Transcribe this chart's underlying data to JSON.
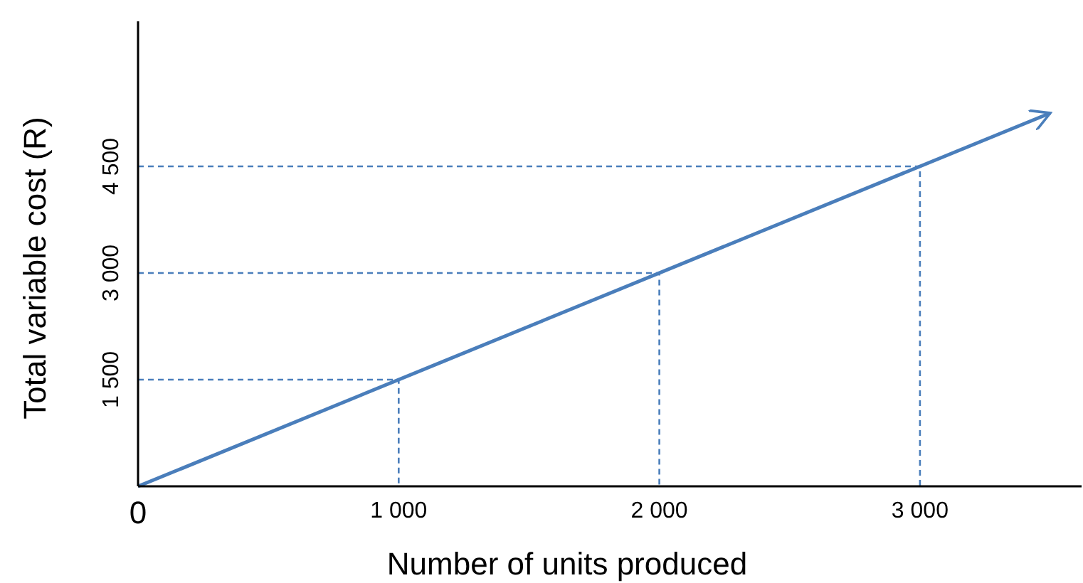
{
  "chart_data": {
    "type": "line",
    "xlabel": "Number of units produced",
    "ylabel": "Total variable cost (R)",
    "x": [
      0,
      3500
    ],
    "series": [
      {
        "color": "#4a7ebb",
        "values": [
          0,
          5250
        ]
      },
      {
        "type": "line",
        "line_style": "dashed",
        "color": "#4a7ebb",
        "x": [
          0,
          1000,
          1000
        ],
        "values": [
          1500,
          1500,
          0
        ]
      },
      {
        "type": "line",
        "line_style": "dashed",
        "color": "#4a7ebb",
        "x": [
          0,
          2000,
          2000
        ],
        "values": [
          3000,
          3000,
          0
        ]
      },
      {
        "type": "line",
        "line_style": "dashed",
        "color": "#4a7ebb",
        "x": [
          0,
          3000,
          3000
        ],
        "values": [
          4500,
          4500,
          0
        ]
      }
    ],
    "xlim": [
      0,
      3620
    ],
    "ylim": [
      0,
      6540
    ],
    "xticks": [
      {
        "value": 0,
        "label": "0"
      },
      {
        "value": 1000,
        "label": "1 000"
      },
      {
        "value": 2000,
        "label": "2 000"
      },
      {
        "value": 3000,
        "label": "3 000"
      }
    ],
    "yticks": [
      {
        "value": 1500,
        "label": "1 500"
      },
      {
        "value": 3000,
        "label": "3 000"
      },
      {
        "value": 4500,
        "label": "4 500"
      }
    ],
    "grid": false,
    "marker": "none"
  }
}
